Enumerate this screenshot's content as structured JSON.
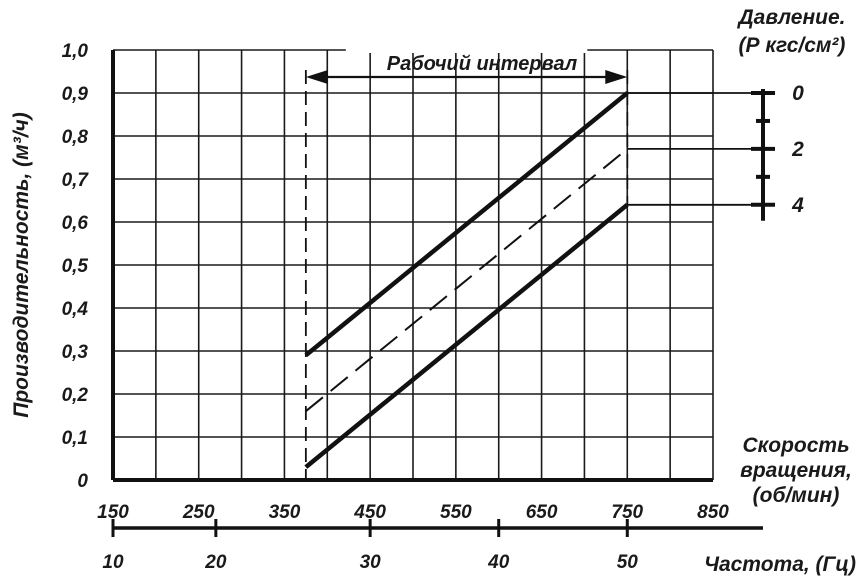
{
  "chart_data": {
    "type": "line",
    "ylabel": "Производительность, (м³/ч)",
    "ylim": [
      0,
      1.0
    ],
    "y_ticks": [
      "0",
      "0,1",
      "0,2",
      "0,3",
      "0,4",
      "0,5",
      "0,6",
      "0,7",
      "0,8",
      "0,9",
      "1,0"
    ],
    "xlim": [
      150,
      850
    ],
    "x_ticks": [
      "150",
      "250",
      "350",
      "450",
      "550",
      "650",
      "750",
      "850"
    ],
    "xlabel": "Скорость вращения, (об/мин)",
    "xlabel_lines": [
      "Скорость",
      "вращения,",
      "(об/мин)"
    ],
    "x2_ticks": [
      {
        "label": "10",
        "rpm": 150
      },
      {
        "label": "20",
        "rpm": 270
      },
      {
        "label": "30",
        "rpm": 450
      },
      {
        "label": "40",
        "rpm": 600
      },
      {
        "label": "50",
        "rpm": 750
      }
    ],
    "x2label": "Частота, (Гц)",
    "grid": true,
    "annotation": {
      "text": "Рабочий интервал",
      "from_rpm": 375,
      "to_rpm": 750
    },
    "pressure_label_lines": [
      "Давление.",
      "(Р кгс/см²)"
    ],
    "pressure_ticks": [
      "0",
      "2",
      "4"
    ],
    "series": [
      {
        "name": "0",
        "style": "solid",
        "x": [
          375,
          750
        ],
        "y": [
          0.29,
          0.9
        ]
      },
      {
        "name": "2",
        "style": "dashed",
        "x": [
          375,
          750
        ],
        "y": [
          0.16,
          0.77
        ]
      },
      {
        "name": "4",
        "style": "solid",
        "x": [
          375,
          750
        ],
        "y": [
          0.03,
          0.64
        ]
      }
    ]
  }
}
